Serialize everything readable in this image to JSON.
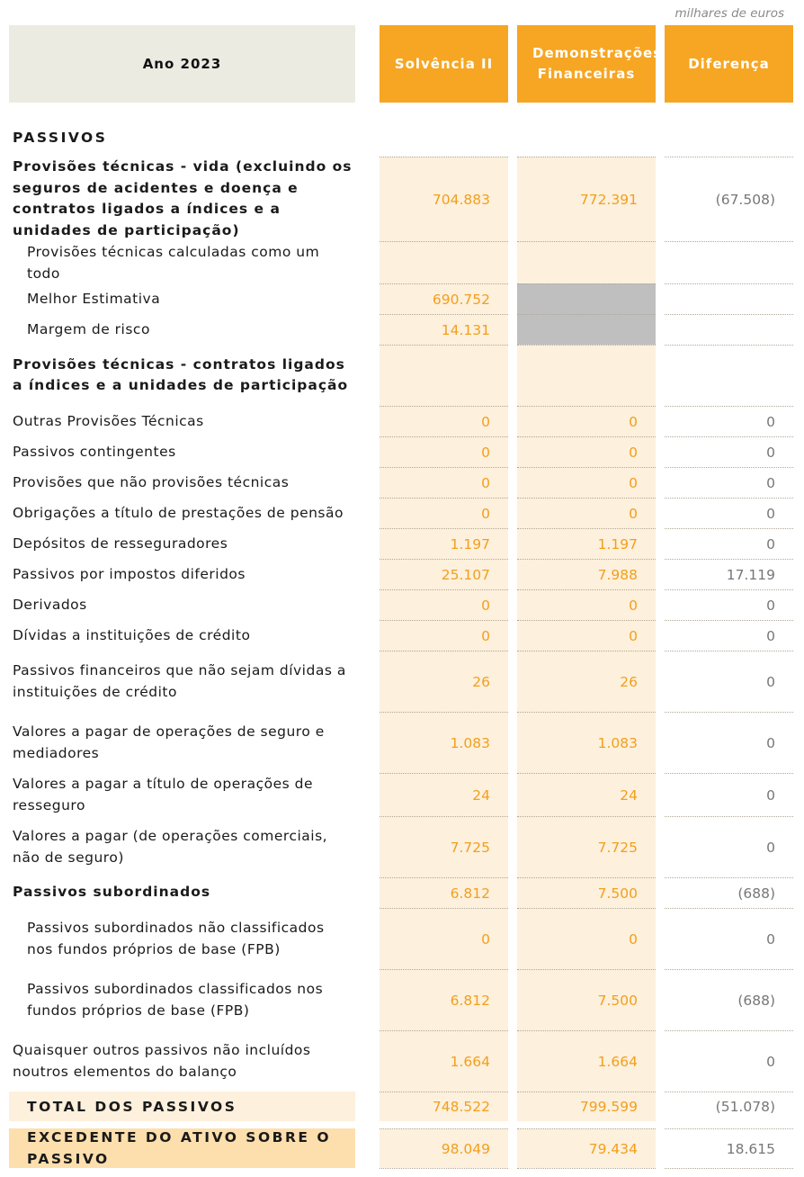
{
  "unit": "milhares de euros",
  "header": {
    "year": "Ano 2023",
    "col1": "Solvência II",
    "col2": "Demonstrações Financeiras",
    "col3": "Diferença"
  },
  "section_title": "PASSIVOS",
  "rows": [
    {
      "label": "Provisões técnicas - vida (excluindo os seguros de acidentes e doença e contratos ligados a índices e a unidades de participação)",
      "s2": "704.883",
      "df": "772.391",
      "dif": "(67.508)",
      "style": "bold"
    },
    {
      "label": "Provisões técnicas calculadas como um todo",
      "s2": "",
      "df": "",
      "dif": "",
      "style": "sub"
    },
    {
      "label": "Melhor Estimativa",
      "s2": "690.752",
      "df": "",
      "dif": "",
      "style": "sub",
      "df_grey": true
    },
    {
      "label": "Margem de risco",
      "s2": "14.131",
      "df": "",
      "dif": "",
      "style": "sub",
      "df_grey": true
    },
    {
      "label": "Provisões técnicas - contratos ligados a índices e a unidades de participação",
      "s2": "",
      "df": "",
      "dif": "",
      "style": "bold"
    },
    {
      "label": "Outras Provisões Técnicas",
      "s2": "0",
      "df": "0",
      "dif": "0",
      "style": "normal"
    },
    {
      "label": "Passivos contingentes",
      "s2": "0",
      "df": "0",
      "dif": "0",
      "style": "normal"
    },
    {
      "label": "Provisões que não provisões técnicas",
      "s2": "0",
      "df": "0",
      "dif": "0",
      "style": "normal"
    },
    {
      "label": "Obrigações a título de prestações de pensão",
      "s2": "0",
      "df": "0",
      "dif": "0",
      "style": "normal"
    },
    {
      "label": "Depósitos de resseguradores",
      "s2": "1.197",
      "df": "1.197",
      "dif": "0",
      "style": "normal"
    },
    {
      "label": "Passivos por impostos diferidos",
      "s2": "25.107",
      "df": "7.988",
      "dif": "17.119",
      "style": "normal"
    },
    {
      "label": "Derivados",
      "s2": "0",
      "df": "0",
      "dif": "0",
      "style": "normal"
    },
    {
      "label": "Dívidas a instituições de crédito",
      "s2": "0",
      "df": "0",
      "dif": "0",
      "style": "normal"
    },
    {
      "label": "Passivos financeiros que não sejam dívidas a instituições de crédito",
      "s2": "26",
      "df": "26",
      "dif": "0",
      "style": "normal"
    },
    {
      "label": "Valores a pagar de operações de seguro e mediadores",
      "s2": "1.083",
      "df": "1.083",
      "dif": "0",
      "style": "normal"
    },
    {
      "label": "Valores a pagar a título de operações de resseguro",
      "s2": "24",
      "df": "24",
      "dif": "0",
      "style": "normal"
    },
    {
      "label": "Valores a pagar (de operações comerciais, não de seguro)",
      "s2": "7.725",
      "df": "7.725",
      "dif": "0",
      "style": "normal"
    },
    {
      "label": "Passivos subordinados",
      "s2": "6.812",
      "df": "7.500",
      "dif": "(688)",
      "style": "bold"
    },
    {
      "label": "Passivos subordinados não classificados nos fundos próprios de base (FPB)",
      "s2": "0",
      "df": "0",
      "dif": "0",
      "style": "sub"
    },
    {
      "label": "Passivos subordinados classificados nos fundos próprios de base (FPB)",
      "s2": "6.812",
      "df": "7.500",
      "dif": "(688)",
      "style": "sub"
    },
    {
      "label": "Quaisquer outros passivos não incluídos noutros elementos do balanço",
      "s2": "1.664",
      "df": "1.664",
      "dif": "0",
      "style": "normal"
    },
    {
      "label": "TOTAL DOS PASSIVOS",
      "s2": "748.522",
      "df": "799.599",
      "dif": "(51.078)",
      "style": "total"
    },
    {
      "label": "EXCEDENTE DO ATIVO SOBRE O PASSIVO",
      "s2": "98.049",
      "df": "79.434",
      "dif": "18.615",
      "style": "exced"
    }
  ]
}
